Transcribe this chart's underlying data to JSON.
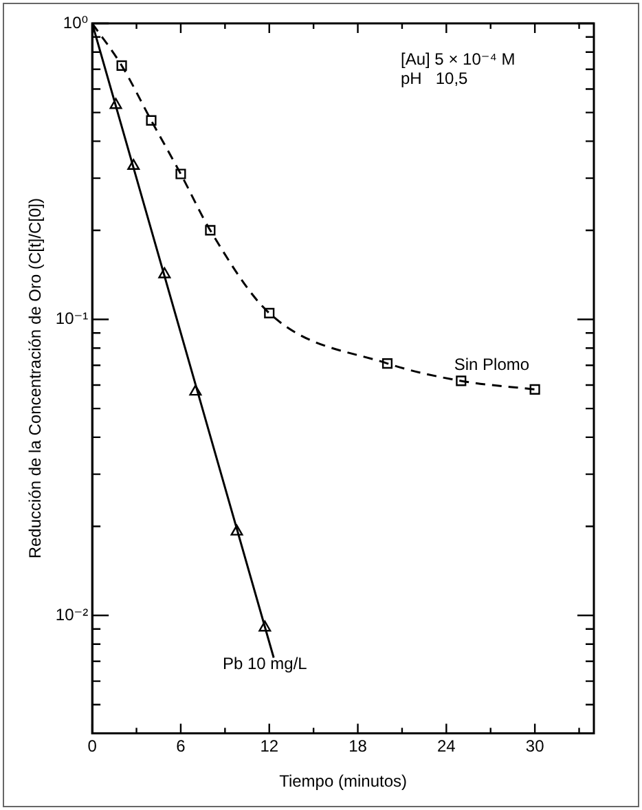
{
  "chart_data": {
    "type": "scatter",
    "xlabel": "Tiempo (minutos)",
    "ylabel": "Reducción de la Concentración de Oro (C[t]/C[0])",
    "log": "y",
    "xlim": [
      0,
      34
    ],
    "xticks": [
      0,
      {
        "value": 3,
        "label": null
      },
      6,
      {
        "value": 9,
        "label": null
      },
      12,
      {
        "value": 15,
        "label": null
      },
      18,
      {
        "value": 21,
        "label": null
      },
      24,
      {
        "value": 27,
        "label": null
      },
      30,
      {
        "value": 33,
        "label": null
      }
    ],
    "ylim": [
      0.004,
      1
    ],
    "yticks": [
      {
        "value": 0.005,
        "label": null
      },
      {
        "value": 0.006,
        "label": null
      },
      {
        "value": 0.007,
        "label": null
      },
      {
        "value": 0.008,
        "label": null
      },
      {
        "value": 0.009,
        "label": null
      },
      {
        "value": 0.01,
        "label": "10⁻²"
      },
      {
        "value": 0.02,
        "label": null
      },
      {
        "value": 0.03,
        "label": null
      },
      {
        "value": 0.04,
        "label": null
      },
      {
        "value": 0.05,
        "label": null
      },
      {
        "value": 0.06,
        "label": null
      },
      {
        "value": 0.07,
        "label": null
      },
      {
        "value": 0.08,
        "label": null
      },
      {
        "value": 0.09,
        "label": null
      },
      {
        "value": 0.1,
        "label": "10⁻¹"
      },
      {
        "value": 0.2,
        "label": null
      },
      {
        "value": 0.3,
        "label": null
      },
      {
        "value": 0.4,
        "label": null
      },
      {
        "value": 0.5,
        "label": null
      },
      {
        "value": 0.6,
        "label": null
      },
      {
        "value": 0.7,
        "label": null
      },
      {
        "value": 0.8,
        "label": null
      },
      {
        "value": 0.9,
        "label": null
      },
      {
        "value": 1,
        "label": "10⁰"
      }
    ],
    "annotations": [
      "[Au] 5 × 10⁻⁴ M",
      "pH   10,5"
    ],
    "series": [
      {
        "type": "line",
        "color": "#000000",
        "line_style": "dashed",
        "marker": "none",
        "x": [
          0,
          2,
          4,
          6,
          8,
          12,
          20,
          25,
          30
        ],
        "values": [
          1,
          0.72,
          0.47,
          0.31,
          0.2,
          0.105,
          0.071,
          0.062,
          0.058
        ]
      },
      {
        "name": "Sin Plomo",
        "color": "#000000",
        "marker": "square",
        "x": [
          2,
          4,
          6,
          8,
          12,
          20,
          25,
          30
        ],
        "values": [
          0.72,
          0.47,
          0.31,
          0.2,
          0.105,
          0.071,
          0.062,
          0.058
        ]
      },
      {
        "type": "line",
        "color": "#000000",
        "line_style": "solid",
        "marker": "none",
        "x": [
          0,
          12.3
        ],
        "values": [
          1,
          0.0072
        ]
      },
      {
        "name": "Pb 10 mg/L",
        "color": "#000000",
        "marker": "triangle",
        "x": [
          1.6,
          2.8,
          4.9,
          7,
          9.8,
          11.7
        ],
        "values": [
          0.53,
          0.33,
          0.142,
          0.057,
          0.0192,
          0.0091
        ]
      }
    ]
  }
}
